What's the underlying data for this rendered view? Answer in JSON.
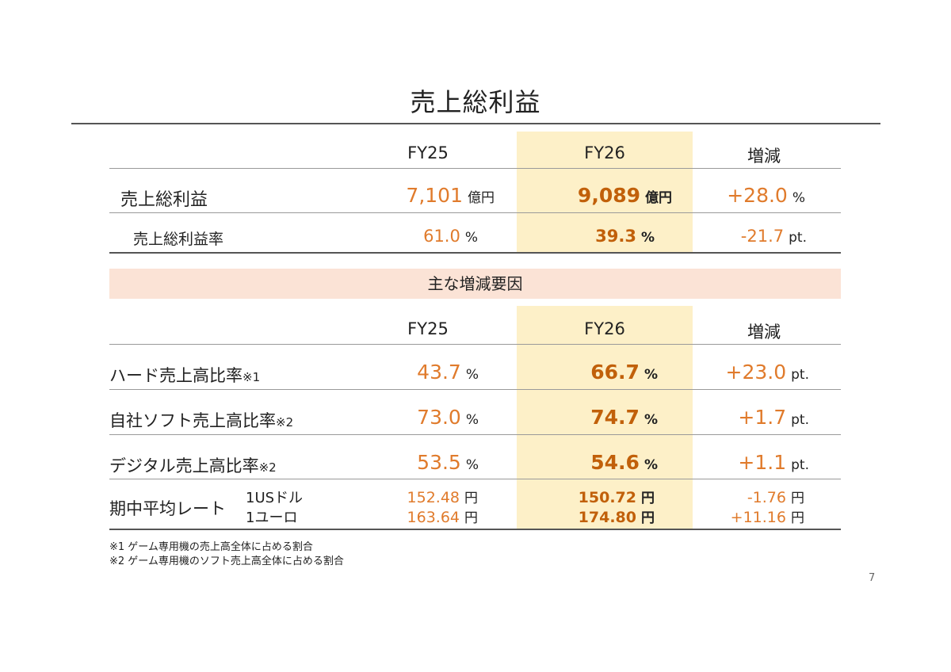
{
  "title": "売上総利益",
  "top_table": {
    "headers": {
      "fy25": "FY25",
      "fy26": "FY26",
      "change": "増減"
    },
    "rows": [
      {
        "label": "売上総利益",
        "fy25": {
          "value": "7,101",
          "unit": "億円"
        },
        "fy26": {
          "value": "9,089",
          "unit": "億円"
        },
        "change": {
          "value": "+28.0",
          "unit": "%"
        }
      },
      {
        "label": "売上総利益率",
        "fy25": {
          "value": "61.0",
          "unit": "%"
        },
        "fy26": {
          "value": "39.3",
          "unit": "%"
        },
        "change": {
          "value": "-21.7",
          "unit": "pt."
        }
      }
    ]
  },
  "factors": {
    "band_label": "主な増減要因",
    "headers": {
      "fy25": "FY25",
      "fy26": "FY26",
      "change": "増減"
    },
    "rows": [
      {
        "label": "ハード売上高比率",
        "note": "※1",
        "fy25": {
          "value": "43.7",
          "unit": "%"
        },
        "fy26": {
          "value": "66.7",
          "unit": "%"
        },
        "change": {
          "value": "+23.0",
          "unit": "pt."
        }
      },
      {
        "label": "自社ソフト売上高比率",
        "note": "※2",
        "fy25": {
          "value": "73.0",
          "unit": "%"
        },
        "fy26": {
          "value": "74.7",
          "unit": "%"
        },
        "change": {
          "value": "+1.7",
          "unit": "pt."
        }
      },
      {
        "label": "デジタル売上高比率",
        "note": "※2",
        "fy25": {
          "value": "53.5",
          "unit": "%"
        },
        "fy26": {
          "value": "54.6",
          "unit": "%"
        },
        "change": {
          "value": "+1.1",
          "unit": "pt."
        }
      }
    ],
    "fx": {
      "label": "期中平均レート",
      "usd": {
        "label": "1USドル",
        "fy25": "152.48",
        "fy26": "150.72",
        "change": "-1.76",
        "unit": "円"
      },
      "eur": {
        "label": "1ユーロ",
        "fy25": "163.64",
        "fy26": "174.80",
        "change": "+11.16",
        "unit": "円"
      }
    }
  },
  "footnotes": [
    "※1 ゲーム専用機の売上高全体に占める割合",
    "※2 ゲーム専用機のソフト売上高全体に占める割合"
  ],
  "page_number": "7",
  "colors": {
    "accent_orange": "#e07b2c",
    "fy26_highlight": "#fdf0c8",
    "band": "#fbe3d6"
  }
}
